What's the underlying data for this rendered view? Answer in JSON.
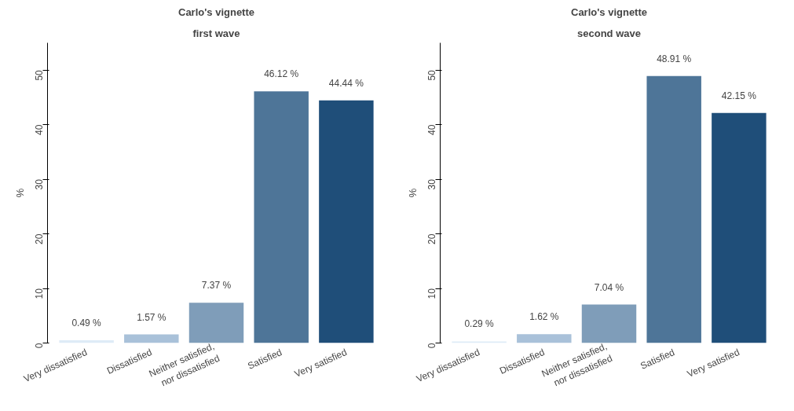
{
  "chart_data": [
    {
      "type": "bar",
      "title": "Carlo's vignette",
      "subtitle": "first wave",
      "ylabel": "%",
      "categories": [
        "Very dissatisfied",
        "Dissatisfied",
        "Neither satisfied,\nnor dissatisfied",
        "Satisfied",
        "Very satisfied"
      ],
      "values": [
        0.49,
        1.57,
        7.37,
        46.12,
        44.44
      ],
      "value_labels": [
        "0.49 %",
        "1.57 %",
        "7.37 %",
        "46.12 %",
        "44.44 %"
      ],
      "colors": [
        "#deebf7",
        "#a9c1d9",
        "#7f9db9",
        "#4e7598",
        "#1f4e79"
      ],
      "ylim": [
        0,
        55
      ],
      "yticks": [
        0,
        10,
        20,
        30,
        40,
        50
      ],
      "grid": false
    },
    {
      "type": "bar",
      "title": "Carlo's vignette",
      "subtitle": "second wave",
      "ylabel": "%",
      "categories": [
        "Very dissatisfied",
        "Dissatisfied",
        "Neither satisfied,\nnor dissatisfied",
        "Satisfied",
        "Very satisfied"
      ],
      "values": [
        0.29,
        1.62,
        7.04,
        48.91,
        42.15
      ],
      "value_labels": [
        "0.29 %",
        "1.62 %",
        "7.04 %",
        "48.91 %",
        "42.15 %"
      ],
      "colors": [
        "#deebf7",
        "#a9c1d9",
        "#7f9db9",
        "#4e7598",
        "#1f4e79"
      ],
      "ylim": [
        0,
        55
      ],
      "yticks": [
        0,
        10,
        20,
        30,
        40,
        50
      ],
      "grid": false
    }
  ]
}
